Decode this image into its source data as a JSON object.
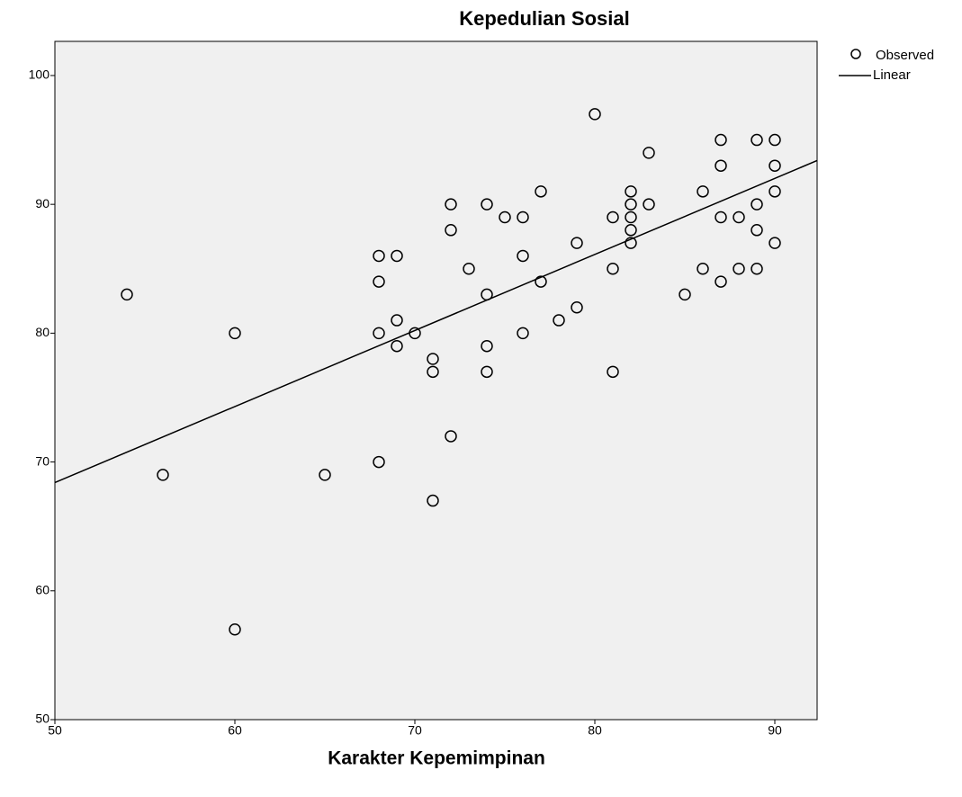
{
  "chart_data": {
    "type": "scatter",
    "title": "Kepedulian Sosial",
    "xlabel": "Karakter Kepemimpinan",
    "xlim": [
      50,
      92.35
    ],
    "ylim": [
      50,
      102.65
    ],
    "xticks": [
      50,
      60,
      70,
      80,
      90
    ],
    "yticks": [
      50,
      60,
      70,
      80,
      90,
      100
    ],
    "series": [
      {
        "name": "Observed",
        "color": "#000000",
        "x": [
          54,
          56,
          60,
          60,
          65,
          68,
          68,
          68,
          68,
          69,
          69,
          69,
          70,
          71,
          71,
          71,
          72,
          72,
          72,
          73,
          74,
          74,
          74,
          74,
          75,
          76,
          76,
          76,
          77,
          77,
          78,
          79,
          79,
          80,
          81,
          81,
          81,
          82,
          82,
          82,
          82,
          82,
          83,
          83,
          85,
          86,
          86,
          87,
          87,
          87,
          87,
          88,
          88,
          89,
          89,
          89,
          89,
          90,
          90,
          90,
          90
        ],
        "values": [
          83,
          69,
          80,
          57,
          69,
          86,
          84,
          80,
          70,
          86,
          81,
          79,
          80,
          78,
          77,
          67,
          90,
          88,
          72,
          85,
          90,
          83,
          79,
          77,
          89,
          89,
          86,
          80,
          91,
          84,
          81,
          87,
          82,
          97,
          89,
          85,
          77,
          91,
          90,
          89,
          88,
          87,
          94,
          90,
          83,
          91,
          85,
          95,
          93,
          89,
          84,
          89,
          85,
          95,
          90,
          88,
          85,
          95,
          93,
          91,
          87
        ]
      },
      {
        "name": "Linear",
        "type": "line",
        "color": "#000000",
        "x": [
          50,
          92.35
        ],
        "values": [
          68.4,
          93.4
        ]
      }
    ]
  }
}
